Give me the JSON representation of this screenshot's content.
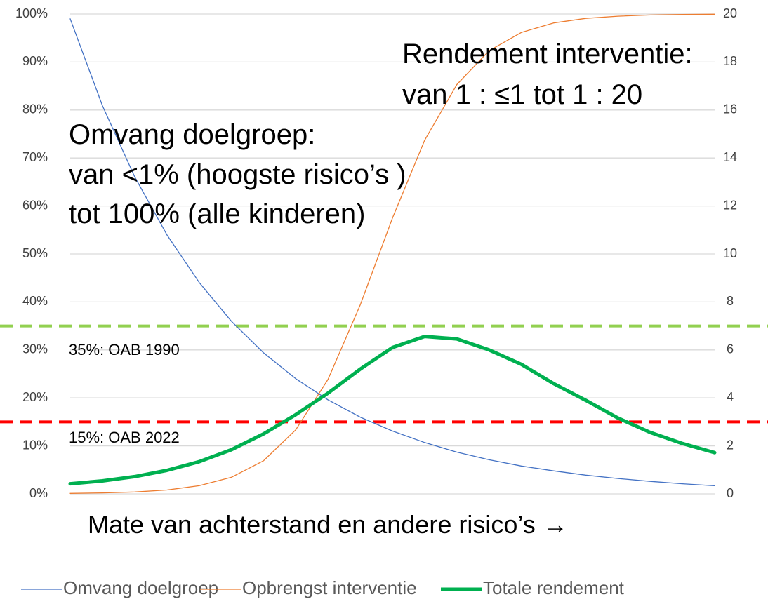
{
  "chart_data": {
    "type": "line",
    "categories": [
      null,
      null,
      null,
      null,
      null,
      null,
      null,
      null,
      null,
      null,
      null,
      null,
      null,
      null,
      null,
      null,
      null,
      null,
      null,
      null,
      null
    ],
    "series": [
      {
        "name": "Omvang doelgroep",
        "color": "#4472c4",
        "axis": "y",
        "width": 1.3,
        "values": [
          99,
          80.9,
          66.1,
          54.0,
          44.1,
          36.0,
          29.4,
          24.0,
          19.6,
          16.0,
          13.1,
          10.7,
          8.7,
          7.1,
          5.8,
          4.8,
          3.9,
          3.2,
          2.6,
          2.1,
          1.7
        ]
      },
      {
        "name": "Opbrengst interventie",
        "color": "#ed7d31",
        "axis": "y2",
        "width": 1.3,
        "values": [
          0.02,
          0.04,
          0.08,
          0.16,
          0.34,
          0.69,
          1.38,
          2.67,
          4.77,
          7.87,
          11.49,
          14.74,
          17.06,
          18.47,
          19.23,
          19.63,
          19.82,
          19.91,
          19.96,
          19.98,
          19.99
        ]
      },
      {
        "name": "Totale rendement",
        "color": "#00b050",
        "axis": "y",
        "width": 5,
        "values": [
          2.1,
          2.7,
          3.6,
          4.9,
          6.7,
          9.2,
          12.5,
          16.5,
          21,
          26,
          30.5,
          32.8,
          32.3,
          30,
          27,
          23,
          19.5,
          15.8,
          12.8,
          10.5,
          8.6
        ]
      }
    ],
    "ylim": [
      0,
      100
    ],
    "yticks": [
      {
        "value": 0,
        "label": "0%"
      },
      {
        "value": 10,
        "label": "10%"
      },
      {
        "value": 20,
        "label": "20%"
      },
      {
        "value": 30,
        "label": "30%"
      },
      {
        "value": 40,
        "label": "40%"
      },
      {
        "value": 50,
        "label": "50%"
      },
      {
        "value": 60,
        "label": "60%"
      },
      {
        "value": 70,
        "label": "70%"
      },
      {
        "value": 80,
        "label": "80%"
      },
      {
        "value": 90,
        "label": "90%"
      },
      {
        "value": 100,
        "label": "100%"
      }
    ],
    "y2lim": [
      0,
      20
    ],
    "y2ticks": [
      0,
      2,
      4,
      6,
      8,
      10,
      12,
      14,
      16,
      18,
      20
    ],
    "grid": true,
    "legend": "bottom",
    "reference_lines": [
      {
        "value": 35,
        "label": "35%: OAB 1990",
        "color": "#92d050"
      },
      {
        "value": 15,
        "label": "15%: OAB 2022",
        "color": "#ff0000"
      }
    ],
    "annotations": [
      "Rendement interventie:",
      "van 1 : ≤1 tot 1 : 20",
      "Omvang doelgroep:",
      "van <1% (hoogste risico’s )",
      "tot 100% (alle kinderen)"
    ],
    "x_label": "Mate van achterstand en andere risico’s →"
  }
}
